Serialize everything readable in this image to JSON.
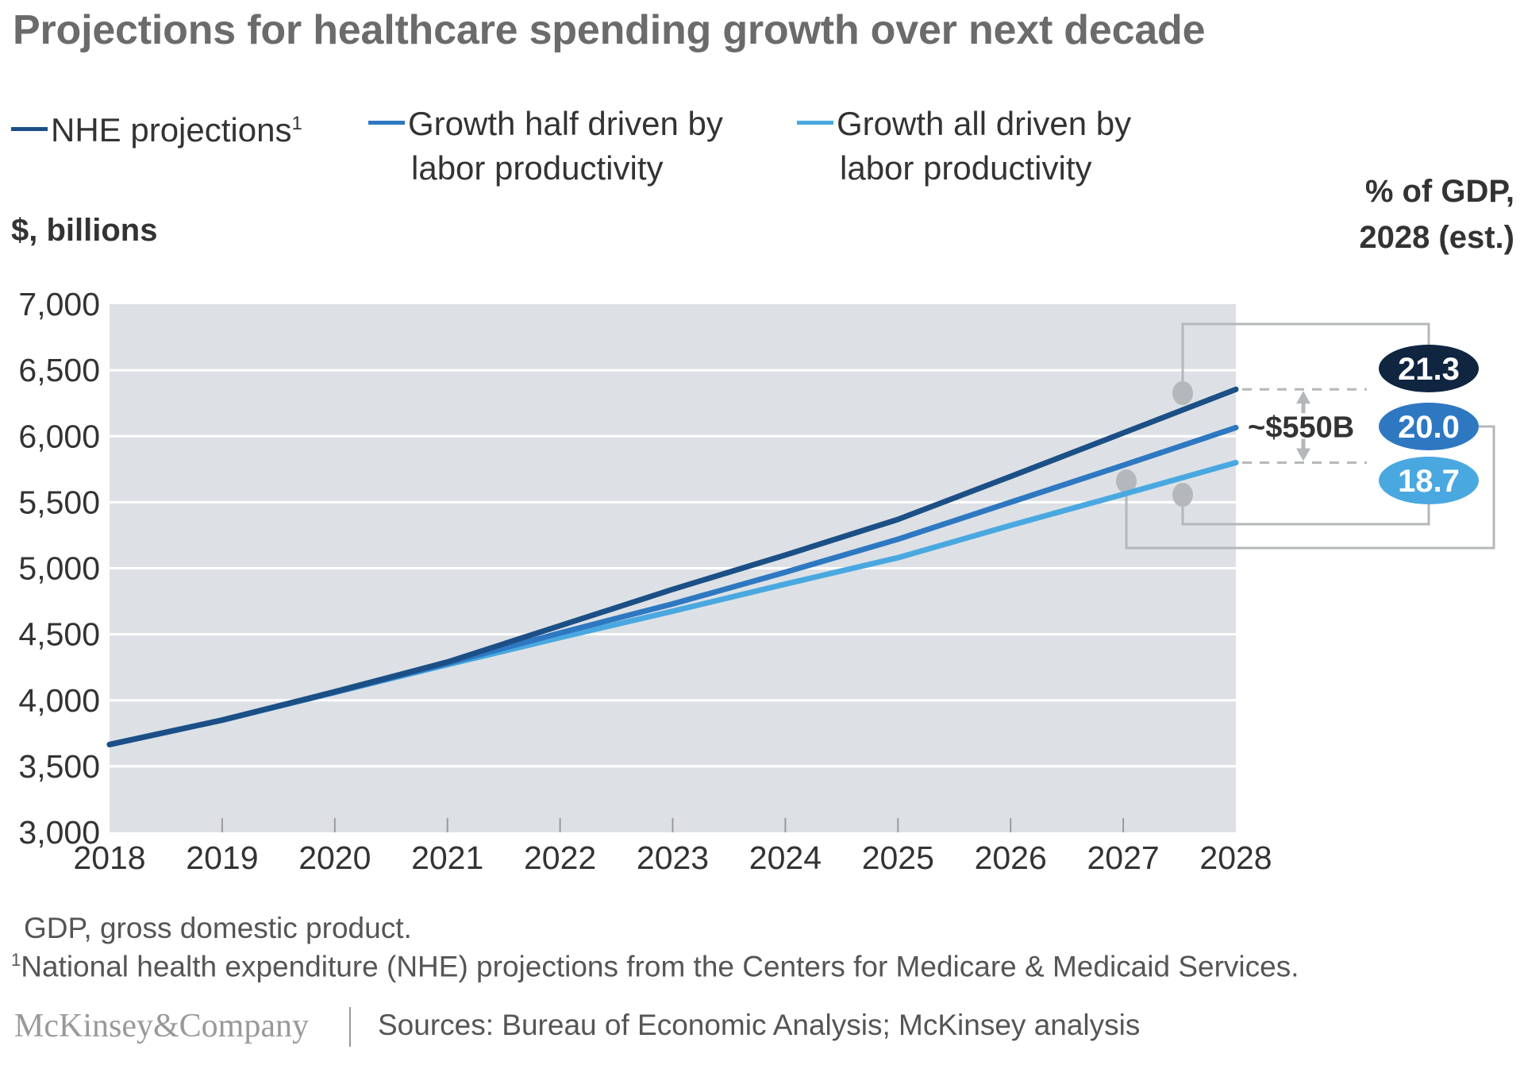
{
  "title": "Projections for healthcare spending growth over next decade",
  "legend": [
    {
      "label": "NHE projections",
      "sup": "1",
      "color": "#1b4f86"
    },
    {
      "label": "Growth half driven by labor productivity",
      "line1": "Growth half driven by",
      "line2": "labor productivity",
      "color": "#2e78c2"
    },
    {
      "label": "Growth all driven by labor productivity",
      "line1": "Growth all driven by",
      "line2": "labor productivity",
      "color": "#4aa8e0"
    }
  ],
  "ylabel": "$, billions",
  "gdp_label": {
    "line1": "% of GDP,",
    "line2": "2028 (est.)"
  },
  "annotation": "~$550B",
  "badges": [
    {
      "value": "21.3",
      "color": "#0f2540"
    },
    {
      "value": "20.0",
      "color": "#2e78c2"
    },
    {
      "value": "18.7",
      "color": "#4aa8e0"
    }
  ],
  "notes": {
    "gdp": "GDP, gross domestic product.",
    "footnote_sup": "1",
    "footnote": "National health expenditure (NHE) projections from the Centers for Medicare & Medicaid Services."
  },
  "footer": {
    "logo": "McKinsey&Company",
    "sources": "Sources: Bureau of Economic Analysis; McKinsey analysis"
  },
  "chart_data": {
    "type": "line",
    "title": "Projections for healthcare spending growth over next decade",
    "xlabel": "",
    "ylabel": "$, billions",
    "x": [
      2018,
      2019,
      2020,
      2021,
      2022,
      2023,
      2024,
      2025,
      2026,
      2027,
      2028
    ],
    "x_tick_labels": [
      "2018",
      "2019",
      "2020",
      "2021",
      "2022",
      "2023",
      "2024",
      "2025",
      "2026",
      "2027",
      "2028"
    ],
    "y_tick_labels": [
      "3,000",
      "3,500",
      "4,000",
      "4,500",
      "5,000",
      "5,500",
      "6,000",
      "6,500",
      "7,000"
    ],
    "y_ticks": [
      3000,
      3500,
      4000,
      4500,
      5000,
      5500,
      6000,
      6500,
      7000
    ],
    "ylim": [
      3000,
      7000
    ],
    "grid": true,
    "legend_position": "top",
    "series": [
      {
        "name": "NHE projections",
        "color": "#1b4f86",
        "values": [
          3665,
          3850,
          4065,
          4290,
          4565,
          4840,
          5100,
          5370,
          5695,
          6025,
          6355
        ],
        "gdp_share_2028": 21.3
      },
      {
        "name": "Growth half driven by labor productivity",
        "color": "#2e78c2",
        "values": [
          3665,
          3850,
          4060,
          4280,
          4510,
          4730,
          4970,
          5220,
          5500,
          5780,
          6065
        ],
        "gdp_share_2028": 20.0
      },
      {
        "name": "Growth all driven by labor productivity",
        "color": "#4aa8e0",
        "values": [
          3665,
          3850,
          4060,
          4270,
          4475,
          4675,
          4880,
          5080,
          5325,
          5560,
          5800
        ],
        "gdp_share_2028": 18.7
      }
    ],
    "annotations": [
      "~$550B gap between NHE projections and growth all driven by labor productivity in 2028"
    ]
  }
}
